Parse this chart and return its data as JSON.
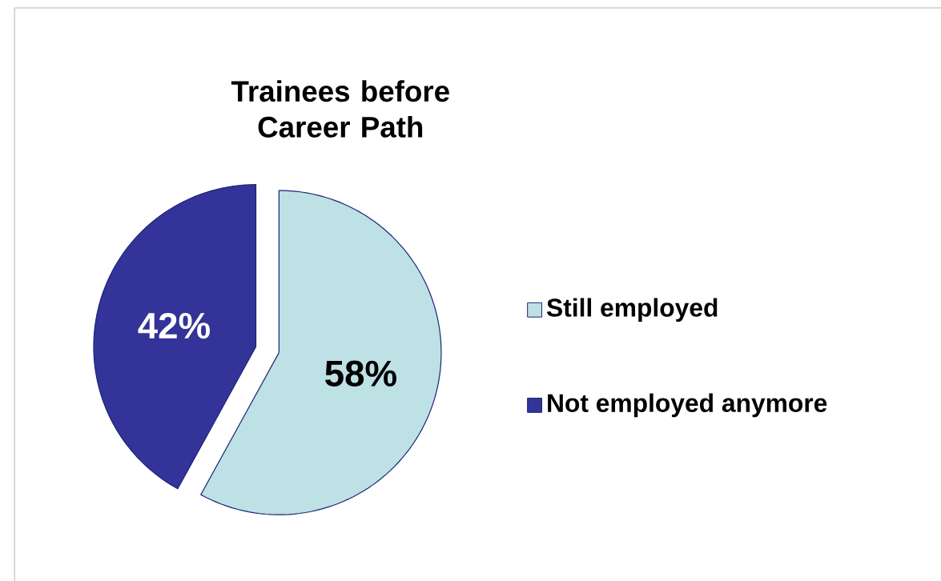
{
  "chart_data": {
    "type": "pie",
    "title": "Trainees before\nCareer Path",
    "categories": [
      "Still employed",
      "Not employed anymore"
    ],
    "values": [
      58,
      42
    ],
    "colors": [
      "#bde1e4",
      "#333399"
    ],
    "value_labels": [
      "58%",
      "42%"
    ],
    "legend": "right"
  }
}
